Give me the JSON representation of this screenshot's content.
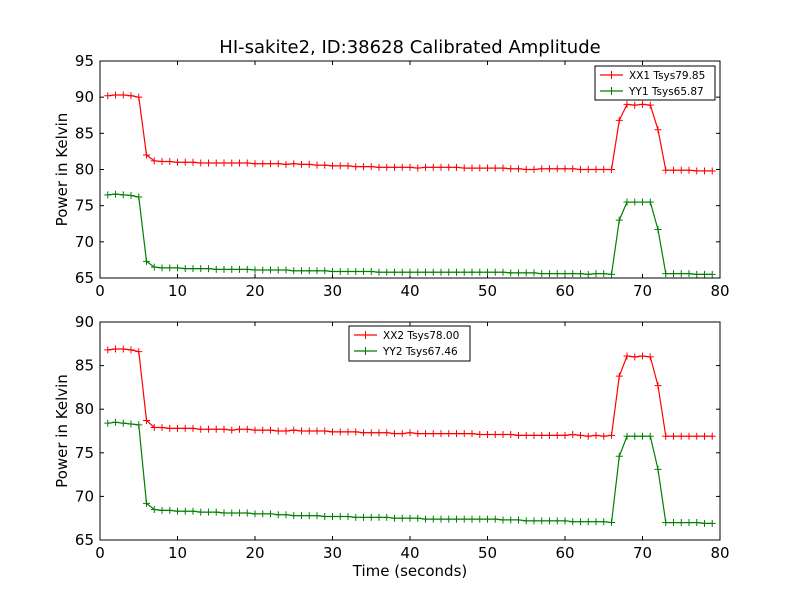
{
  "figure": {
    "title": "HI-sakite2, ID:38628 Calibrated Amplitude"
  },
  "chart_data": [
    {
      "type": "line",
      "title": "HI-sakite2, ID:38628 Calibrated Amplitude",
      "xlabel": "",
      "ylabel": "Power in Kelvin",
      "xlim": [
        0,
        80
      ],
      "ylim": [
        65,
        95
      ],
      "xticks": [
        "0",
        "10",
        "20",
        "30",
        "40",
        "50",
        "60",
        "70",
        "80"
      ],
      "yticks": [
        "65",
        "70",
        "75",
        "80",
        "85",
        "90",
        "95"
      ],
      "legend_position": "top-right",
      "series": [
        {
          "name": "XX1 Tsys79.85",
          "color": "#ff0000",
          "x": [
            1,
            2,
            3,
            4,
            5,
            6,
            7,
            8,
            9,
            10,
            11,
            12,
            13,
            14,
            15,
            16,
            17,
            18,
            19,
            20,
            21,
            22,
            23,
            24,
            25,
            26,
            27,
            28,
            29,
            30,
            31,
            32,
            33,
            34,
            35,
            36,
            37,
            38,
            39,
            40,
            41,
            42,
            43,
            44,
            45,
            46,
            47,
            48,
            49,
            50,
            51,
            52,
            53,
            54,
            55,
            56,
            57,
            58,
            59,
            60,
            61,
            62,
            63,
            64,
            65,
            66,
            67,
            68,
            69,
            70,
            71,
            72,
            73,
            74,
            75,
            76,
            77,
            78,
            79
          ],
          "y": [
            90.2,
            90.3,
            90.3,
            90.2,
            90.0,
            82.0,
            81.2,
            81.1,
            81.1,
            81.0,
            81.0,
            81.0,
            80.9,
            80.9,
            80.9,
            80.9,
            80.9,
            80.9,
            80.9,
            80.8,
            80.8,
            80.8,
            80.8,
            80.7,
            80.8,
            80.7,
            80.7,
            80.6,
            80.6,
            80.5,
            80.5,
            80.5,
            80.4,
            80.4,
            80.4,
            80.3,
            80.3,
            80.3,
            80.3,
            80.3,
            80.2,
            80.3,
            80.3,
            80.3,
            80.3,
            80.3,
            80.2,
            80.2,
            80.2,
            80.2,
            80.2,
            80.2,
            80.1,
            80.1,
            80.0,
            80.0,
            80.1,
            80.1,
            80.1,
            80.1,
            80.1,
            80.0,
            80.0,
            80.0,
            80.0,
            80.0,
            86.8,
            89.0,
            88.9,
            89.0,
            88.9,
            85.5,
            79.9,
            79.9,
            79.9,
            79.9,
            79.8,
            79.8,
            79.8
          ]
        },
        {
          "name": "YY1 Tsys65.87",
          "color": "#008000",
          "x": [
            1,
            2,
            3,
            4,
            5,
            6,
            7,
            8,
            9,
            10,
            11,
            12,
            13,
            14,
            15,
            16,
            17,
            18,
            19,
            20,
            21,
            22,
            23,
            24,
            25,
            26,
            27,
            28,
            29,
            30,
            31,
            32,
            33,
            34,
            35,
            36,
            37,
            38,
            39,
            40,
            41,
            42,
            43,
            44,
            45,
            46,
            47,
            48,
            49,
            50,
            51,
            52,
            53,
            54,
            55,
            56,
            57,
            58,
            59,
            60,
            61,
            62,
            63,
            64,
            65,
            66,
            67,
            68,
            69,
            70,
            71,
            72,
            73,
            74,
            75,
            76,
            77,
            78,
            79
          ],
          "y": [
            76.5,
            76.6,
            76.5,
            76.4,
            76.2,
            67.3,
            66.5,
            66.4,
            66.4,
            66.4,
            66.3,
            66.3,
            66.3,
            66.3,
            66.2,
            66.2,
            66.2,
            66.2,
            66.2,
            66.1,
            66.1,
            66.1,
            66.1,
            66.1,
            66.0,
            66.0,
            66.0,
            66.0,
            66.0,
            65.9,
            65.9,
            65.9,
            65.9,
            65.9,
            65.9,
            65.8,
            65.8,
            65.8,
            65.8,
            65.8,
            65.8,
            65.8,
            65.8,
            65.8,
            65.8,
            65.8,
            65.8,
            65.8,
            65.8,
            65.8,
            65.8,
            65.8,
            65.7,
            65.7,
            65.7,
            65.7,
            65.6,
            65.6,
            65.6,
            65.6,
            65.6,
            65.6,
            65.5,
            65.6,
            65.6,
            65.5,
            73.0,
            75.5,
            75.5,
            75.5,
            75.5,
            71.7,
            65.6,
            65.6,
            65.6,
            65.6,
            65.5,
            65.5,
            65.5
          ]
        }
      ]
    },
    {
      "type": "line",
      "title": "",
      "xlabel": "Time (seconds)",
      "ylabel": "Power in Kelvin",
      "xlim": [
        0,
        80
      ],
      "ylim": [
        65,
        90
      ],
      "xticks": [
        "0",
        "10",
        "20",
        "30",
        "40",
        "50",
        "60",
        "70",
        "80"
      ],
      "yticks": [
        "65",
        "70",
        "75",
        "80",
        "85",
        "90"
      ],
      "legend_position": "top-center",
      "series": [
        {
          "name": "XX2 Tsys78.00",
          "color": "#ff0000",
          "x": [
            1,
            2,
            3,
            4,
            5,
            6,
            7,
            8,
            9,
            10,
            11,
            12,
            13,
            14,
            15,
            16,
            17,
            18,
            19,
            20,
            21,
            22,
            23,
            24,
            25,
            26,
            27,
            28,
            29,
            30,
            31,
            32,
            33,
            34,
            35,
            36,
            37,
            38,
            39,
            40,
            41,
            42,
            43,
            44,
            45,
            46,
            47,
            48,
            49,
            50,
            51,
            52,
            53,
            54,
            55,
            56,
            57,
            58,
            59,
            60,
            61,
            62,
            63,
            64,
            65,
            66,
            67,
            68,
            69,
            70,
            71,
            72,
            73,
            74,
            75,
            76,
            77,
            78,
            79
          ],
          "y": [
            86.8,
            86.9,
            86.9,
            86.8,
            86.6,
            78.7,
            77.9,
            77.9,
            77.8,
            77.8,
            77.8,
            77.8,
            77.7,
            77.7,
            77.7,
            77.7,
            77.6,
            77.7,
            77.7,
            77.6,
            77.6,
            77.6,
            77.5,
            77.5,
            77.6,
            77.5,
            77.5,
            77.5,
            77.5,
            77.4,
            77.4,
            77.4,
            77.4,
            77.3,
            77.3,
            77.3,
            77.3,
            77.2,
            77.2,
            77.3,
            77.2,
            77.2,
            77.2,
            77.2,
            77.2,
            77.2,
            77.2,
            77.2,
            77.1,
            77.1,
            77.1,
            77.1,
            77.1,
            77.0,
            77.0,
            77.0,
            77.0,
            77.0,
            77.0,
            77.0,
            77.1,
            77.0,
            76.9,
            77.0,
            76.9,
            77.0,
            83.8,
            86.1,
            86.0,
            86.1,
            86.0,
            82.7,
            76.9,
            76.9,
            76.9,
            76.9,
            76.9,
            76.9,
            76.9
          ]
        },
        {
          "name": "YY2 Tsys67.46",
          "color": "#008000",
          "x": [
            1,
            2,
            3,
            4,
            5,
            6,
            7,
            8,
            9,
            10,
            11,
            12,
            13,
            14,
            15,
            16,
            17,
            18,
            19,
            20,
            21,
            22,
            23,
            24,
            25,
            26,
            27,
            28,
            29,
            30,
            31,
            32,
            33,
            34,
            35,
            36,
            37,
            38,
            39,
            40,
            41,
            42,
            43,
            44,
            45,
            46,
            47,
            48,
            49,
            50,
            51,
            52,
            53,
            54,
            55,
            56,
            57,
            58,
            59,
            60,
            61,
            62,
            63,
            64,
            65,
            66,
            67,
            68,
            69,
            70,
            71,
            72,
            73,
            74,
            75,
            76,
            77,
            78,
            79
          ],
          "y": [
            78.4,
            78.5,
            78.4,
            78.3,
            78.2,
            69.2,
            68.5,
            68.4,
            68.4,
            68.3,
            68.3,
            68.3,
            68.2,
            68.2,
            68.2,
            68.1,
            68.1,
            68.1,
            68.1,
            68.0,
            68.0,
            68.0,
            67.9,
            67.9,
            67.8,
            67.8,
            67.8,
            67.8,
            67.7,
            67.7,
            67.7,
            67.7,
            67.6,
            67.6,
            67.6,
            67.6,
            67.6,
            67.5,
            67.5,
            67.5,
            67.5,
            67.4,
            67.4,
            67.4,
            67.4,
            67.4,
            67.4,
            67.4,
            67.4,
            67.4,
            67.4,
            67.3,
            67.3,
            67.3,
            67.2,
            67.2,
            67.2,
            67.2,
            67.2,
            67.2,
            67.1,
            67.1,
            67.1,
            67.1,
            67.1,
            67.0,
            74.6,
            76.9,
            76.9,
            76.9,
            76.9,
            73.1,
            67.0,
            67.0,
            67.0,
            67.0,
            67.0,
            66.9,
            66.9
          ]
        }
      ]
    }
  ]
}
